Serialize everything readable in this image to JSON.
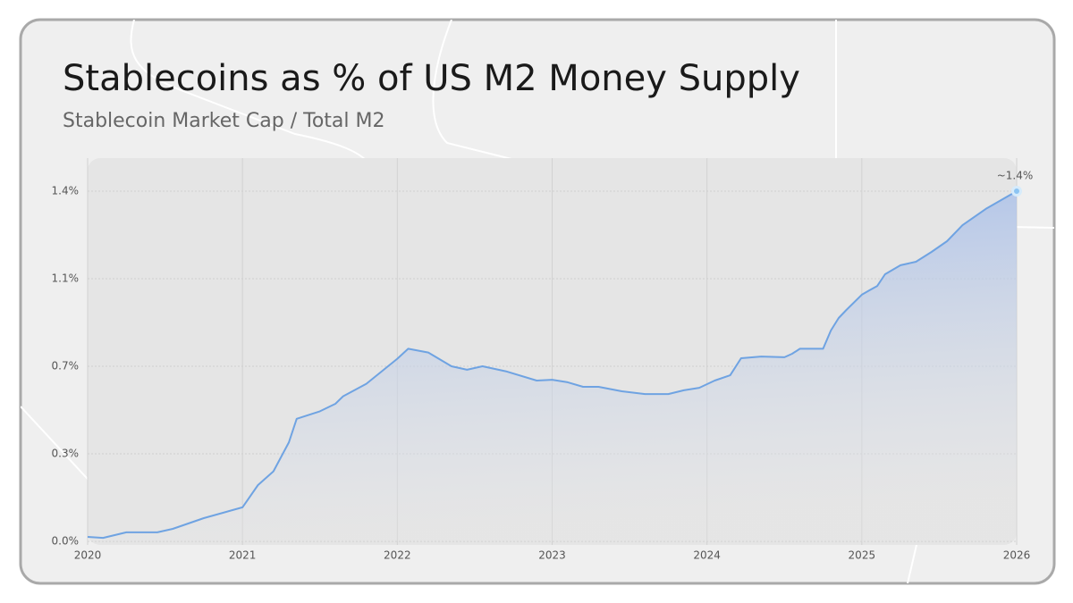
{
  "chart_data": {
    "type": "area",
    "title": "Stablecoins as % of US M2 Money Supply",
    "subtitle": "Stablecoin Market Cap / Total M2",
    "annotation": "~1.4%",
    "color": "#6fa3e2",
    "x": [
      2020.0,
      2020.1,
      2020.25,
      2020.45,
      2020.55,
      2020.75,
      2021.0,
      2021.1,
      2021.2,
      2021.3,
      2021.35,
      2021.5,
      2021.6,
      2021.65,
      2021.8,
      2021.9,
      2022.0,
      2022.07,
      2022.2,
      2022.35,
      2022.45,
      2022.55,
      2022.7,
      2022.9,
      2023.0,
      2023.1,
      2023.2,
      2023.3,
      2023.45,
      2023.6,
      2023.75,
      2023.85,
      2023.95,
      2024.05,
      2024.15,
      2024.22,
      2024.35,
      2024.5,
      2024.55,
      2024.6,
      2024.75,
      2024.8,
      2024.85,
      2024.9,
      2025.0,
      2025.05,
      2025.1,
      2025.15,
      2025.25,
      2025.35,
      2025.45,
      2025.55,
      2025.65,
      2025.8,
      2026.0
    ],
    "values": [
      0.018,
      0.014,
      0.036,
      0.036,
      0.05,
      0.093,
      0.136,
      0.225,
      0.28,
      0.396,
      0.49,
      0.52,
      0.55,
      0.58,
      0.63,
      0.68,
      0.73,
      0.77,
      0.755,
      0.7,
      0.686,
      0.7,
      0.68,
      0.643,
      0.646,
      0.636,
      0.618,
      0.618,
      0.6,
      0.589,
      0.589,
      0.604,
      0.614,
      0.643,
      0.664,
      0.732,
      0.739,
      0.736,
      0.75,
      0.77,
      0.77,
      0.843,
      0.893,
      0.925,
      0.986,
      1.004,
      1.021,
      1.068,
      1.104,
      1.118,
      1.157,
      1.2,
      1.264,
      1.329,
      1.4
    ],
    "xlim": [
      2020,
      2026
    ],
    "xticks": [
      2020,
      2021,
      2022,
      2023,
      2024,
      2025,
      2026
    ],
    "ylim": [
      0,
      1.4
    ],
    "yticks": [
      {
        "value": 0,
        "label": "0.0%"
      },
      {
        "value": 0.35,
        "label": "0.3%"
      },
      {
        "value": 0.7,
        "label": "0.7%"
      },
      {
        "value": 1.05,
        "label": "1.1%"
      },
      {
        "value": 1.4,
        "label": "1.4%"
      }
    ],
    "grid": true
  }
}
